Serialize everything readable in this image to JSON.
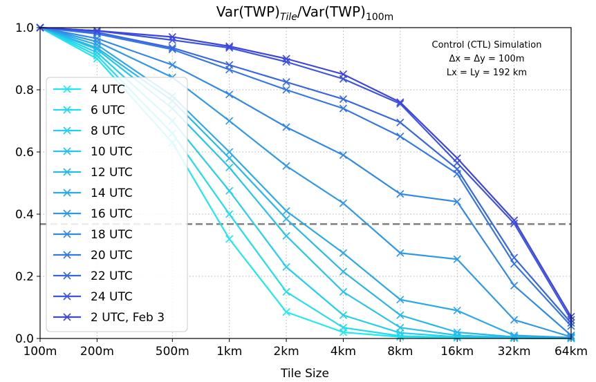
{
  "chart_data": {
    "type": "line",
    "title": "Var(TWP)",
    "title_sub1": "Tile",
    "title_mid": "/Var(TWP)",
    "title_sub2": "100m",
    "xlabel": "Tile Size",
    "ylabel": "",
    "x_scale": "log2",
    "x": [
      100,
      200,
      500,
      1000,
      2000,
      4000,
      8000,
      16000,
      32000,
      64000
    ],
    "x_tick_labels": [
      "100m",
      "200m",
      "500m",
      "1km",
      "2km",
      "4km",
      "8km",
      "16km",
      "32km",
      "64km"
    ],
    "ylim": [
      0,
      1
    ],
    "y_ticks": [
      0.0,
      0.2,
      0.4,
      0.6,
      0.8,
      1.0
    ],
    "y_tick_labels": [
      "0.0",
      "0.2",
      "0.4",
      "0.6",
      "0.8",
      "1.0"
    ],
    "grid": true,
    "legend_position": "left",
    "reference_line": {
      "y": 0.368,
      "color": "#808080",
      "style": "dashed"
    },
    "annotation": [
      "Control (CTL) Simulation",
      "Δx = Δy = 100m",
      "Lx = Ly = 192 km"
    ],
    "series": [
      {
        "name": "4 UTC",
        "color": "#1ee8f0",
        "values": [
          1.0,
          0.9,
          0.63,
          0.32,
          0.085,
          0.02,
          0.005,
          0.002,
          0.001,
          0.0
        ]
      },
      {
        "name": "6 UTC",
        "color": "#20dcef",
        "values": [
          1.0,
          0.91,
          0.66,
          0.4,
          0.15,
          0.035,
          0.008,
          0.003,
          0.001,
          0.0
        ]
      },
      {
        "name": "8 UTC",
        "color": "#22d0ee",
        "values": [
          1.0,
          0.92,
          0.7,
          0.475,
          0.23,
          0.075,
          0.018,
          0.005,
          0.002,
          0.001
        ]
      },
      {
        "name": "10 UTC",
        "color": "#24c4ec",
        "values": [
          1.0,
          0.93,
          0.74,
          0.55,
          0.33,
          0.15,
          0.035,
          0.01,
          0.003,
          0.001
        ]
      },
      {
        "name": "12 UTC",
        "color": "#27b7eb",
        "values": [
          1.0,
          0.935,
          0.765,
          0.58,
          0.385,
          0.215,
          0.075,
          0.02,
          0.005,
          0.002
        ]
      },
      {
        "name": "14 UTC",
        "color": "#2aa9ea",
        "values": [
          1.0,
          0.945,
          0.78,
          0.6,
          0.41,
          0.275,
          0.125,
          0.09,
          0.01,
          0.003
        ]
      },
      {
        "name": "16 UTC",
        "color": "#2d99e8",
        "values": [
          1.0,
          0.955,
          0.84,
          0.7,
          0.555,
          0.435,
          0.275,
          0.255,
          0.06,
          0.005
        ]
      },
      {
        "name": "18 UTC",
        "color": "#3188e6",
        "values": [
          1.0,
          0.965,
          0.88,
          0.785,
          0.68,
          0.59,
          0.465,
          0.44,
          0.17,
          0.01
        ]
      },
      {
        "name": "20 UTC",
        "color": "#3477e4",
        "values": [
          1.0,
          0.98,
          0.93,
          0.865,
          0.8,
          0.74,
          0.65,
          0.53,
          0.24,
          0.04
        ]
      },
      {
        "name": "22 UTC",
        "color": "#3866e2",
        "values": [
          1.0,
          0.985,
          0.935,
          0.88,
          0.825,
          0.77,
          0.695,
          0.545,
          0.26,
          0.05
        ]
      },
      {
        "name": "24 UTC",
        "color": "#3b55e0",
        "values": [
          1.0,
          0.99,
          0.96,
          0.935,
          0.89,
          0.835,
          0.755,
          0.565,
          0.37,
          0.06
        ]
      },
      {
        "name": "2 UTC, Feb 3",
        "color": "#3f44dd",
        "values": [
          1.0,
          0.99,
          0.97,
          0.94,
          0.9,
          0.85,
          0.76,
          0.58,
          0.38,
          0.07
        ]
      }
    ]
  }
}
